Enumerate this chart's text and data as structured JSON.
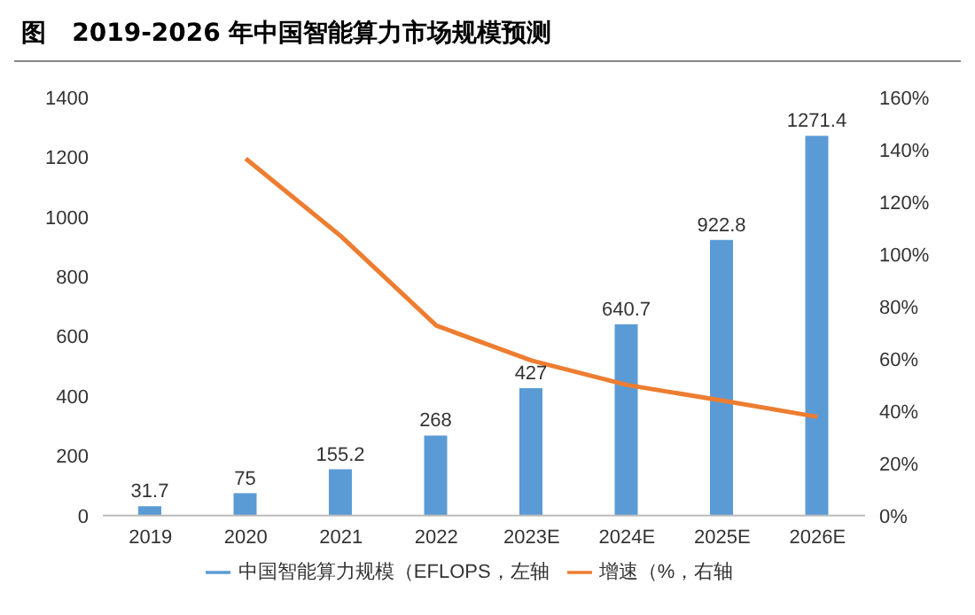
{
  "chart_data": {
    "type": "bar",
    "title": "图   2019-2026 年中国智能算力市场规模预测",
    "categories": [
      "2019",
      "2020",
      "2021",
      "2022",
      "2023E",
      "2024E",
      "2025E",
      "2026E"
    ],
    "series": [
      {
        "name": "中国智能算力规模（EFLOPS，左轴",
        "color": "#5b9bd5",
        "data_labels": true,
        "values": [
          31.7,
          75,
          155.2,
          268,
          427,
          640.7,
          922.8,
          1271.4
        ]
      },
      {
        "name": "增速（%，右轴",
        "color": "#ed7d31",
        "type": "line",
        "axis": "y2",
        "marker": "none",
        "values": [
          null,
          136.6,
          106.9,
          72.7,
          59.3,
          50.0,
          44.0,
          37.8
        ]
      }
    ],
    "ylim": [
      0,
      1400
    ],
    "yticks": [
      0,
      200,
      400,
      600,
      800,
      1000,
      1200,
      1400
    ],
    "y2lim": [
      0,
      160
    ],
    "y2ticks": [
      {
        "value": 0,
        "label": "0%"
      },
      {
        "value": 20,
        "label": "20%"
      },
      {
        "value": 40,
        "label": "40%"
      },
      {
        "value": 60,
        "label": "60%"
      },
      {
        "value": 80,
        "label": "80%"
      },
      {
        "value": 100,
        "label": "100%"
      },
      {
        "value": 120,
        "label": "120%"
      },
      {
        "value": 140,
        "label": "140%"
      },
      {
        "value": 160,
        "label": "160%"
      }
    ],
    "grid": false,
    "legend": "bottom"
  }
}
